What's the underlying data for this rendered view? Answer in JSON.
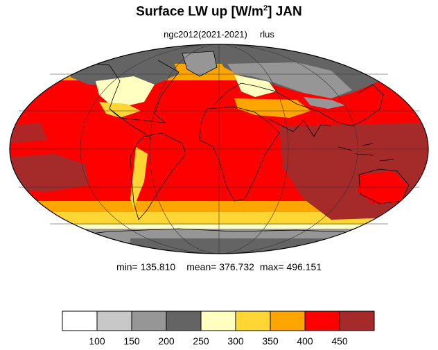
{
  "title": {
    "main": "Surface LW up [W/m",
    "sup": "2",
    "rest": "]  JAN"
  },
  "subtitle": {
    "run": "ngc2012(2021-2021)",
    "var": "rlus"
  },
  "stats": {
    "min_label": "min=",
    "min": "135.810",
    "mean_label": "mean=",
    "mean": "376.732",
    "max_label": "max=",
    "max": "496.151"
  },
  "colorbar": {
    "colors": [
      "#ffffff",
      "#c8c8c8",
      "#969696",
      "#646464",
      "#ffffc0",
      "#ffd633",
      "#ffa500",
      "#ff0000",
      "#a52a2a"
    ],
    "ticks": [
      "100",
      "150",
      "200",
      "250",
      "300",
      "350",
      "400",
      "450"
    ]
  },
  "map": {
    "projection": "Mollweide",
    "ocean_pattern": "dark red in central Indian Ocean / west Pacific warm pool; red across tropics and subtropics; orange and yellow bands in mid-latitudes; gray over Antarctica, Arctic, Siberia and northern Canada"
  }
}
